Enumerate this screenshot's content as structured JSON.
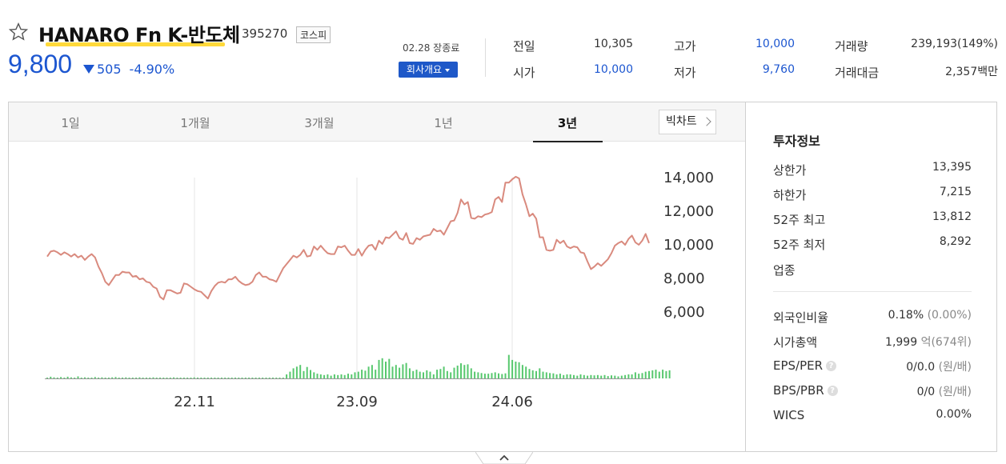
{
  "header": {
    "name": "HANARO Fn K-반도체",
    "code": "395270",
    "market": "코스피",
    "price": "9,800",
    "change": "505",
    "change_pct": "-4.90%",
    "close_status": "02.28 장종료",
    "company_btn": "회사개요"
  },
  "stats": {
    "prev_label": "전일",
    "prev_value": "10,305",
    "open_label": "시가",
    "open_value": "10,000",
    "high_label": "고가",
    "high_value": "10,000",
    "low_label": "저가",
    "low_value": "9,760",
    "volume_label": "거래량",
    "volume_value": "239,193(149%)",
    "amount_label": "거래대금",
    "amount_value": "2,357백만"
  },
  "tabs": [
    "1일",
    "1개월",
    "3개월",
    "1년",
    "3년"
  ],
  "active_tab": "3년",
  "bigchart_label": "빅차트",
  "info": {
    "title": "투자정보",
    "upper_label": "상한가",
    "upper_value": "13,395",
    "lower_label": "하한가",
    "lower_value": "7,215",
    "high52_label": "52주 최고",
    "high52_value": "13,812",
    "low52_label": "52주 최저",
    "low52_value": "8,292",
    "sector_label": "업종",
    "foreign_label": "외국인비율",
    "foreign_value": "0.18%",
    "foreign_sub": "(0.00%)",
    "mcap_label": "시가총액",
    "mcap_value": "1,999",
    "mcap_unit": "억",
    "mcap_sub": "(674위)",
    "eps_label": "EPS/PER",
    "eps_value": "0/0.0",
    "eps_unit": "(원/배)",
    "bps_label": "BPS/PBR",
    "bps_value": "0/0",
    "bps_unit": "(원/배)",
    "wics_label": "WICS",
    "wics_value": "0.00%"
  },
  "colors": {
    "up": "#e0262f",
    "down": "#1c56d0",
    "line": "#d98a7e",
    "volume": "#57c86e",
    "accent_underline": "#ffd93a"
  },
  "chart_data": {
    "type": "line",
    "y_ticks": [
      "14,000",
      "12,000",
      "10,000",
      "8,000",
      "6,000"
    ],
    "ylim": [
      6000,
      14000
    ],
    "x_ticks": [
      "22.11",
      "23.09",
      "24.06"
    ],
    "series": [
      {
        "values": [
          9300,
          9600,
          9650,
          9550,
          9400,
          9550,
          9450,
          9300,
          9450,
          9250,
          9350,
          9100,
          9300,
          9450,
          9250,
          8700,
          8300,
          7800,
          7600,
          7900,
          8200,
          8200,
          8400,
          8350,
          8350,
          8100,
          8150,
          7950,
          8000,
          7800,
          7750,
          7500,
          7400,
          6900,
          6750,
          7300,
          7300,
          7200,
          7100,
          7150,
          7700,
          7650,
          7500,
          7350,
          7250,
          7200,
          7000,
          6800,
          7250,
          7550,
          7750,
          7800,
          7750,
          7950,
          7950,
          8100,
          7850,
          7700,
          7600,
          7650,
          7800,
          8200,
          8350,
          8100,
          8100,
          7950,
          7900,
          7800,
          8200,
          8600,
          8850,
          9100,
          9350,
          9250,
          9400,
          9700,
          9300,
          9350,
          9900,
          9700,
          9950,
          9700,
          9500,
          9450,
          9450,
          9900,
          9850,
          9950,
          9650,
          9400,
          9400,
          9750,
          9350,
          9700,
          9950,
          10000,
          9700,
          10250,
          10050,
          10450,
          10400,
          10600,
          10800,
          10400,
          10300,
          10700,
          10100,
          10050,
          10400,
          10300,
          10500,
          10550,
          10600,
          10950,
          10800,
          10850,
          10600,
          11000,
          11400,
          11450,
          11900,
          12700,
          12400,
          12550,
          11600,
          11550,
          11700,
          11650,
          11800,
          11850,
          11950,
          12700,
          12850,
          12550,
          13700,
          13700,
          13900,
          14050,
          13950,
          13000,
          12400,
          11700,
          11850,
          11550,
          10450,
          10450,
          9700,
          9650,
          9700,
          10300,
          10100,
          10250,
          9900,
          9800,
          9900,
          9850,
          9550,
          9500,
          9000,
          8550,
          8700,
          8900,
          8750,
          8950,
          9150,
          9500,
          9950,
          10100,
          10200,
          10000,
          10350,
          10550,
          10150,
          10000,
          10250,
          10650,
          10100
        ]
      },
      {
        "name": "volume",
        "values": [
          0.02,
          0.05,
          0.03,
          0.02,
          0.04,
          0.02,
          0.05,
          0.03,
          0.02,
          0.06,
          0.02,
          0.03,
          0.02,
          0.02,
          0.04,
          0.02,
          0.03,
          0.02,
          0.02,
          0.03,
          0.04,
          0.02,
          0.02,
          0.03,
          0.02,
          0.02,
          0.02,
          0.03,
          0.02,
          0.02,
          0.02,
          0.03,
          0.02,
          0.02,
          0.02,
          0.02,
          0.02,
          0.03,
          0.02,
          0.02,
          0.02,
          0.02,
          0.02,
          0.03,
          0.02,
          0.02,
          0.02,
          0.02,
          0.02,
          0.02,
          0.02,
          0.02,
          0.02,
          0.02,
          0.02,
          0.02,
          0.02,
          0.02,
          0.02,
          0.02,
          0.02,
          0.02,
          0.02,
          0.02,
          0.02,
          0.02,
          0.02,
          0.02,
          0.02,
          0.02,
          0.12,
          0.2,
          0.3,
          0.35,
          0.4,
          0.22,
          0.34,
          0.25,
          0.18,
          0.14,
          0.12,
          0.1,
          0.12,
          0.08,
          0.12,
          0.1,
          0.12,
          0.1,
          0.14,
          0.12,
          0.18,
          0.2,
          0.26,
          0.23,
          0.35,
          0.4,
          0.26,
          0.55,
          0.6,
          0.5,
          0.58,
          0.35,
          0.4,
          0.32,
          0.42,
          0.46,
          0.3,
          0.22,
          0.26,
          0.2,
          0.18,
          0.24,
          0.2,
          0.12,
          0.26,
          0.28,
          0.35,
          0.22,
          0.18,
          0.32,
          0.38,
          0.45,
          0.4,
          0.42,
          0.3,
          0.2,
          0.18,
          0.16,
          0.14,
          0.14,
          0.16,
          0.18,
          0.15,
          0.13,
          0.15,
          0.7,
          0.55,
          0.5,
          0.48,
          0.4,
          0.35,
          0.28,
          0.24,
          0.22,
          0.3,
          0.2,
          0.18,
          0.16,
          0.15,
          0.12,
          0.14,
          0.1,
          0.12,
          0.12,
          0.1,
          0.08,
          0.12,
          0.1,
          0.08,
          0.1,
          0.09,
          0.1,
          0.08,
          0.1,
          0.07,
          0.09,
          0.08,
          0.06,
          0.08,
          0.1,
          0.12,
          0.12,
          0.18,
          0.14,
          0.16,
          0.2,
          0.22,
          0.24,
          0.26,
          0.2,
          0.26,
          0.22,
          0.24
        ]
      }
    ]
  },
  "bottom": {
    "chevron": "chevron-up-icon"
  }
}
